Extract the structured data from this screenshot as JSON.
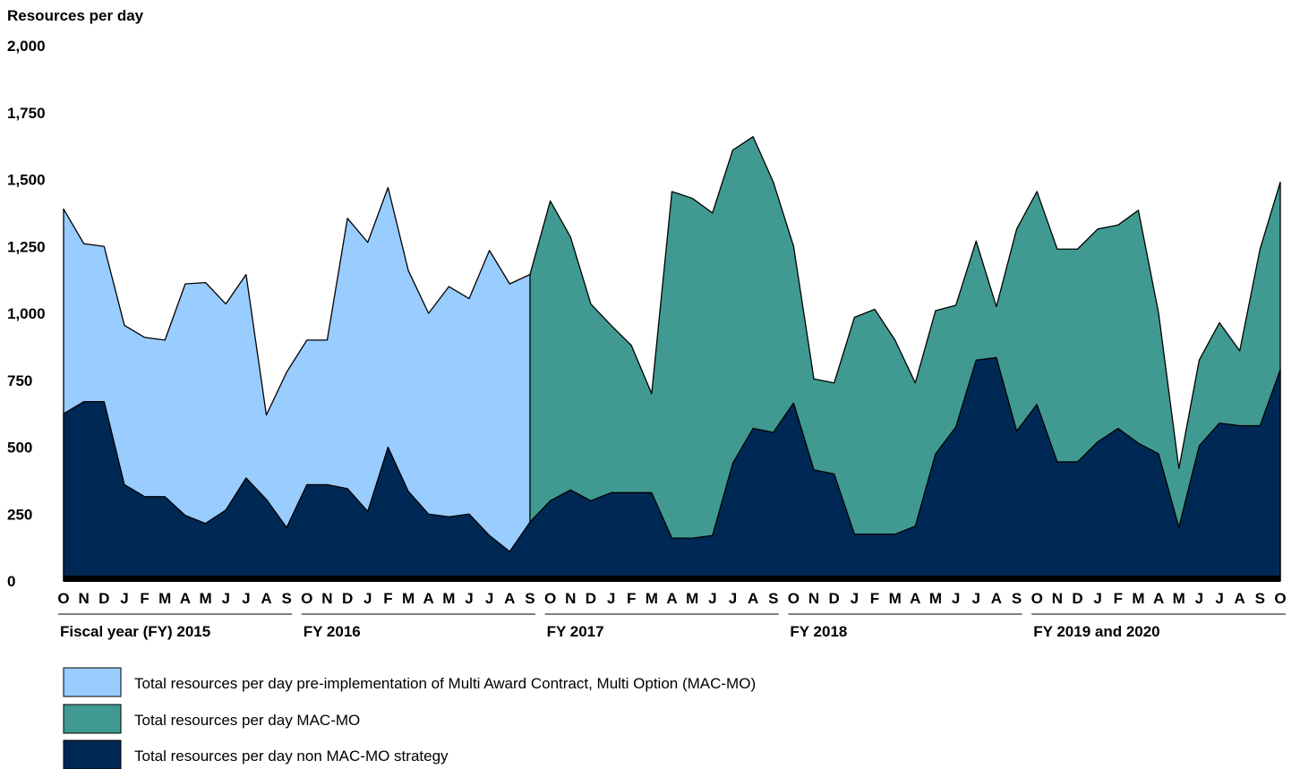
{
  "chart_data": {
    "type": "area",
    "ylabel": "Resources per day",
    "ylim": [
      0,
      2000
    ],
    "yticks": [
      0,
      250,
      500,
      750,
      1000,
      1250,
      1500,
      1750,
      2000
    ],
    "ytick_labels": [
      "0",
      "250",
      "500",
      "750",
      "1,000",
      "1,250",
      "1,500",
      "1,750",
      "2,000"
    ],
    "grid": false,
    "legend_position": "bottom-left",
    "x": [
      "O",
      "N",
      "D",
      "J",
      "F",
      "M",
      "A",
      "M",
      "J",
      "J",
      "A",
      "S",
      "O",
      "N",
      "D",
      "J",
      "F",
      "M",
      "A",
      "M",
      "J",
      "J",
      "A",
      "S",
      "O",
      "N",
      "D",
      "J",
      "F",
      "M",
      "A",
      "M",
      "J",
      "J",
      "A",
      "S",
      "O",
      "N",
      "D",
      "J",
      "F",
      "M",
      "A",
      "M",
      "J",
      "J",
      "A",
      "S",
      "O",
      "N",
      "D",
      "J",
      "F",
      "M",
      "A",
      "M",
      "J",
      "J",
      "A",
      "S",
      "O"
    ],
    "groups": [
      {
        "label": "Fiscal year (FY) 2015",
        "start": 0,
        "end": 11
      },
      {
        "label": "FY 2016",
        "start": 12,
        "end": 23
      },
      {
        "label": "FY 2017",
        "start": 24,
        "end": 35
      },
      {
        "label": "FY 2018",
        "start": 36,
        "end": 47
      },
      {
        "label": "FY 2019 and 2020",
        "start": 48,
        "end": 60
      }
    ],
    "series": [
      {
        "name": "Total resources per day pre-implementation of Multi Award Contract, Multi Option (MAC-MO)",
        "color": "#99ccff",
        "values": [
          1390,
          1260,
          1250,
          955,
          910,
          900,
          1110,
          1115,
          1035,
          1145,
          620,
          780,
          900,
          900,
          1355,
          1265,
          1470,
          1160,
          1000,
          1100,
          1055,
          1235,
          1110,
          1145,
          300,
          null,
          null,
          null,
          null,
          null,
          null,
          null,
          null,
          null,
          null,
          null,
          null,
          null,
          null,
          null,
          null,
          null,
          null,
          null,
          null,
          null,
          null,
          null,
          null,
          null,
          null,
          null,
          null,
          null,
          null,
          null,
          null,
          null,
          null,
          null,
          null
        ]
      },
      {
        "name": "Total resources per day MAC-MO",
        "color": "#409a91",
        "values": [
          null,
          null,
          null,
          null,
          null,
          null,
          null,
          null,
          null,
          null,
          null,
          null,
          null,
          null,
          null,
          null,
          null,
          null,
          null,
          null,
          null,
          null,
          null,
          1145,
          1420,
          1285,
          1035,
          955,
          880,
          700,
          1455,
          1430,
          1375,
          1610,
          1660,
          1490,
          1250,
          755,
          740,
          985,
          1015,
          900,
          740,
          1010,
          1030,
          1270,
          1025,
          1315,
          1455,
          1240,
          1240,
          1315,
          1330,
          1385,
          1000,
          420,
          825,
          965,
          860,
          1240,
          1490
        ]
      },
      {
        "name": "Total resources per day non MAC-MO strategy",
        "color": "#002855",
        "values": [
          625,
          670,
          670,
          360,
          315,
          315,
          245,
          215,
          265,
          385,
          305,
          200,
          360,
          360,
          345,
          260,
          500,
          335,
          250,
          240,
          250,
          170,
          110,
          220,
          300,
          340,
          300,
          330,
          330,
          330,
          160,
          160,
          170,
          440,
          570,
          555,
          665,
          415,
          400,
          175,
          175,
          175,
          205,
          475,
          575,
          825,
          835,
          560,
          660,
          445,
          445,
          520,
          570,
          515,
          475,
          200,
          505,
          590,
          580,
          580,
          790
        ]
      }
    ]
  }
}
